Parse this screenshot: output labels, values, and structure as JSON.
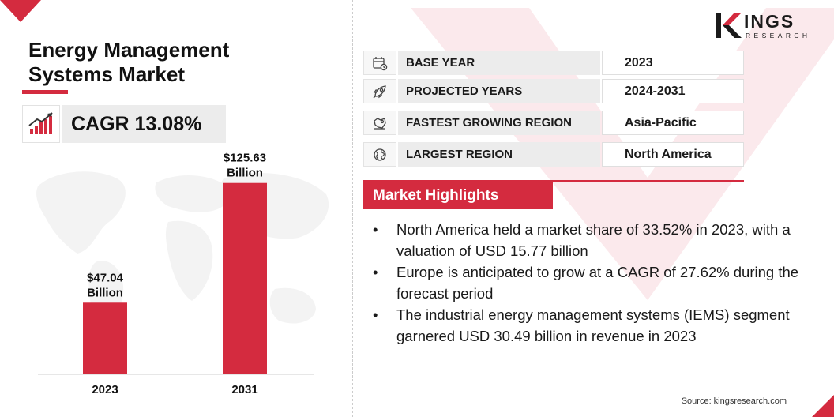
{
  "title_lines": [
    "Energy Management",
    "Systems Market"
  ],
  "cagr_label": "CAGR 13.08%",
  "logo": {
    "word": "INGS",
    "sub": "RESEARCH",
    "text": "KINGS RESEARCH"
  },
  "info_rows": [
    {
      "icon": "calendar-icon",
      "label": "BASE YEAR",
      "value": "2023"
    },
    {
      "icon": "rocket-icon",
      "label": "PROJECTED YEARS",
      "value": "2024-2031"
    },
    {
      "icon": "map-region-icon",
      "label": "FASTEST GROWING REGION",
      "value": "Asia-Pacific"
    },
    {
      "icon": "globe-icon",
      "label": "LARGEST REGION",
      "value": "North America"
    }
  ],
  "highlights_title": "Market Highlights",
  "highlights": [
    "North America held a market share of 33.52% in 2023, with a valuation of USD 15.77 billion",
    "Europe is anticipated to grow at a CAGR of 27.62% during the forecast period",
    "The industrial energy management systems (IEMS) segment garnered USD 30.49 billion in revenue in 2023"
  ],
  "source": "Source: kingsresearch.com",
  "colors": {
    "accent": "#d42b3f",
    "label_bg": "#ececec",
    "text": "#111111"
  },
  "chart_data": {
    "type": "bar",
    "title": "Energy Management Systems Market",
    "categories": [
      "2023",
      "2031"
    ],
    "values": [
      47.04,
      125.63
    ],
    "value_labels": [
      [
        "$47.04",
        "Billion"
      ],
      [
        "$125.63",
        "Billion"
      ]
    ],
    "unit": "USD Billion",
    "xlabel": "",
    "ylabel": "",
    "ylim": [
      0,
      140
    ],
    "grid": false,
    "legend": "none"
  }
}
